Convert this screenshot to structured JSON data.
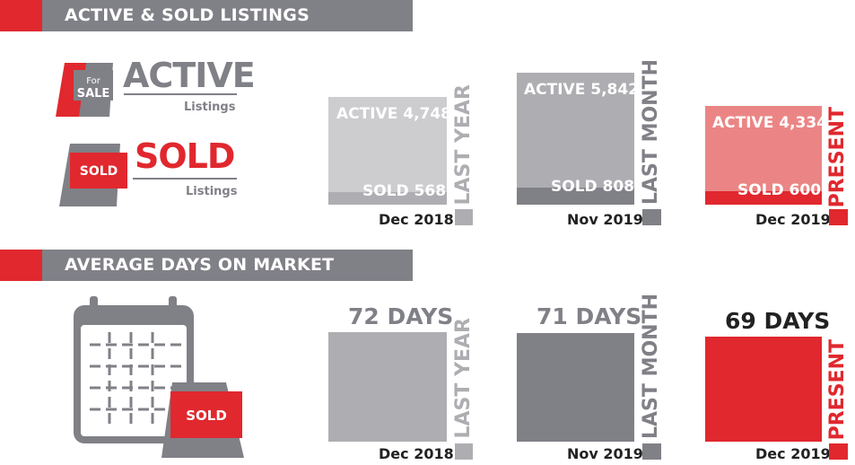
{
  "sections": {
    "listings_title": "ACTIVE & SOLD LISTINGS",
    "days_title": "AVERAGE DAYS ON MARKET"
  },
  "legend": {
    "active_title": "ACTIVE",
    "active_sub": "Listings",
    "sold_title": "SOLD",
    "sold_sub": "Listings",
    "sign_for": "For",
    "sign_sale": "SALE",
    "sign_sold": "SOLD"
  },
  "calendar_sign": "SOLD",
  "listings": [
    {
      "active_label": "ACTIVE 4,748",
      "sold_label": "SOLD 568",
      "date": "Dec 2018",
      "period": "LAST YEAR",
      "active": 4748,
      "sold": 568
    },
    {
      "active_label": "ACTIVE 5,842",
      "sold_label": "SOLD 808",
      "date": "Nov 2019",
      "period": "LAST MONTH",
      "active": 5842,
      "sold": 808
    },
    {
      "active_label": "ACTIVE 4,334",
      "sold_label": "SOLD 600",
      "date": "Dec 2019",
      "period": "PRESENT",
      "active": 4334,
      "sold": 600
    }
  ],
  "days": [
    {
      "label": "72 DAYS",
      "date": "Dec 2018",
      "period": "LAST YEAR",
      "value": 72
    },
    {
      "label": "71 DAYS",
      "date": "Nov 2019",
      "period": "LAST MONTH",
      "value": 71
    },
    {
      "label": "69 DAYS",
      "date": "Dec 2019",
      "period": "PRESENT",
      "value": 69
    }
  ],
  "colors": {
    "red": "#e0282e",
    "gray_dark": "#808087",
    "gray_light": "#cdcdd0",
    "gray_mid": "#aeaeb2",
    "pink": "#eb8585"
  }
}
